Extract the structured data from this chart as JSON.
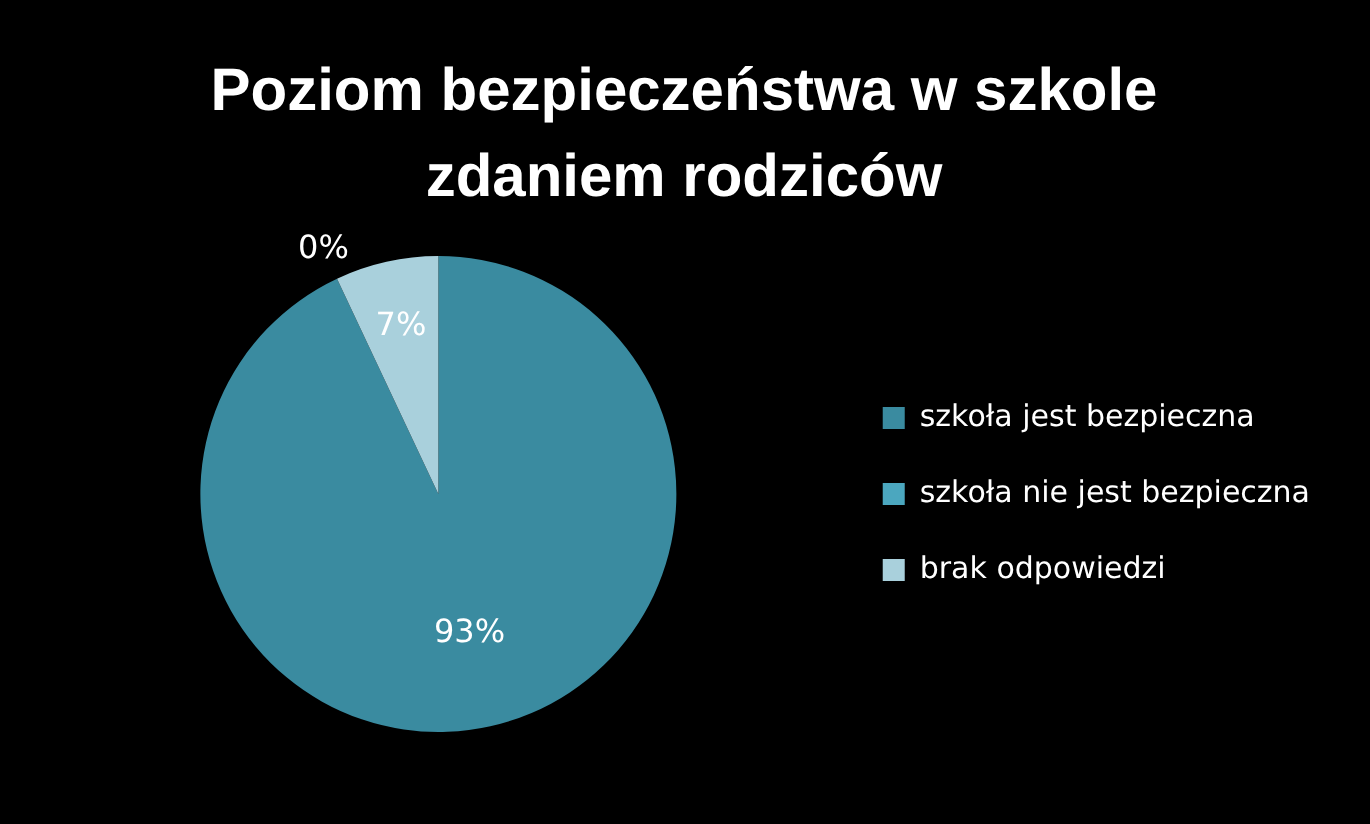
{
  "chart_data": {
    "type": "pie",
    "title": "Poziom bezpieczeństwa w szkole zdaniem rodziców",
    "categories": [
      "szkoła jest bezpieczna",
      "szkoła nie jest bezpieczna",
      "brak odpowiedzi"
    ],
    "values": [
      93,
      0,
      7
    ],
    "colors": [
      "#3a8ba0",
      "#4ba7bf",
      "#a9d0dc"
    ],
    "value_labels": [
      "93%",
      "0%",
      "7%"
    ],
    "legend": "right"
  }
}
